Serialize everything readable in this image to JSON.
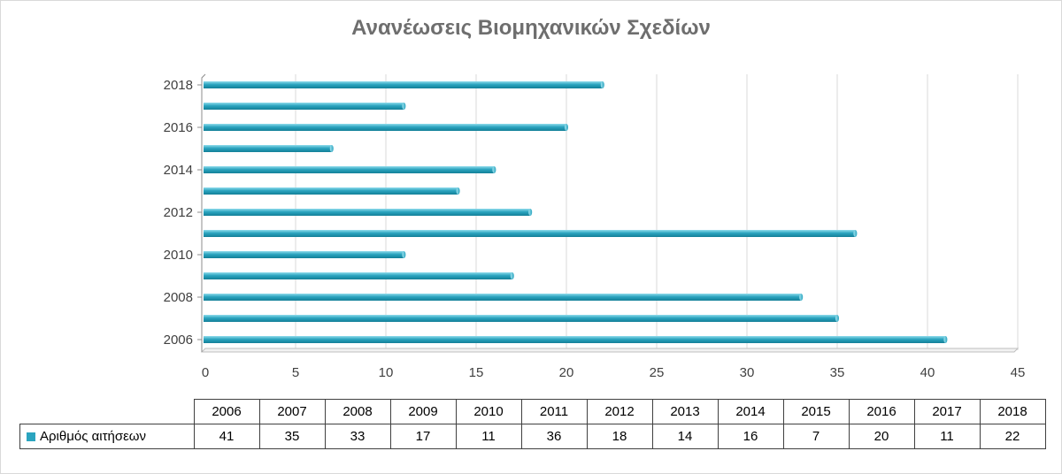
{
  "chart_data": {
    "type": "bar",
    "orientation": "horizontal",
    "title": "Ανανέωσεις Βιομηχανικών Σχεδίων",
    "categories": [
      "2006",
      "2007",
      "2008",
      "2009",
      "2010",
      "2011",
      "2012",
      "2013",
      "2014",
      "2015",
      "2016",
      "2017",
      "2018"
    ],
    "y_tick_labels": [
      "2006",
      "2008",
      "2010",
      "2012",
      "2014",
      "2016",
      "2018"
    ],
    "series": [
      {
        "name": "Αριθμός αιτήσεων",
        "values": [
          41,
          35,
          33,
          17,
          11,
          36,
          18,
          14,
          16,
          7,
          20,
          11,
          22
        ]
      }
    ],
    "xlim": [
      0,
      45
    ],
    "x_ticks": [
      0,
      5,
      10,
      15,
      20,
      25,
      30,
      35,
      40,
      45
    ],
    "grid": "vertical",
    "bar_color": "#2ba4bf",
    "legend": "data-table"
  }
}
